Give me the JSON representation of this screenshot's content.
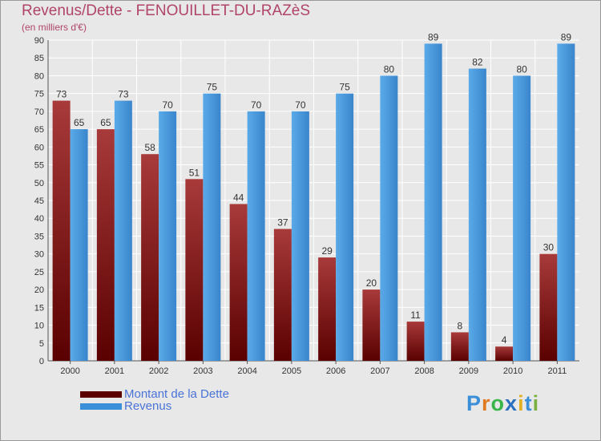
{
  "title": "Revenus/Dette - FENOUILLET-DU-RAZèS",
  "subtitle": "(en milliers d'€)",
  "colors": {
    "title": "#b0446a",
    "debt_dark": "#5a0000",
    "debt_light": "#a83a3a",
    "revenue_dark": "#3a85cc",
    "revenue_light": "#5aaae8",
    "legend_text": "#4a73d8"
  },
  "logo": {
    "text": "Proxiti",
    "letters": [
      "P",
      "r",
      "o",
      "x",
      "i",
      "t",
      "i"
    ],
    "letter_colors": [
      "#3a8fd8",
      "#e07a20",
      "#3ab54a",
      "#2a6fc0",
      "#e0b020",
      "#3a8fd8",
      "#7ab040"
    ]
  },
  "legend": [
    {
      "label": "Montant de la Dette",
      "color": "#5a0000"
    },
    {
      "label": "Revenus",
      "color": "#3a8fd8"
    }
  ],
  "chart_data": {
    "type": "bar",
    "title": "Revenus/Dette - FENOUILLET-DU-RAZèS",
    "subtitle": "(en milliers d'€)",
    "categories": [
      "2000",
      "2001",
      "2002",
      "2003",
      "2004",
      "2005",
      "2006",
      "2007",
      "2008",
      "2009",
      "2010",
      "2011"
    ],
    "series": [
      {
        "name": "Montant de la Dette",
        "values": [
          73,
          65,
          58,
          51,
          44,
          37,
          29,
          20,
          11,
          8,
          4,
          30
        ]
      },
      {
        "name": "Revenus",
        "values": [
          65,
          73,
          70,
          75,
          70,
          70,
          75,
          80,
          89,
          82,
          80,
          89
        ]
      }
    ],
    "ylim": [
      0,
      90
    ],
    "yticks": [
      0,
      5,
      10,
      15,
      20,
      25,
      30,
      35,
      40,
      45,
      50,
      55,
      60,
      65,
      70,
      75,
      80,
      85,
      90
    ],
    "grid": true,
    "legend_position": "bottom-left",
    "data_labels": true
  }
}
